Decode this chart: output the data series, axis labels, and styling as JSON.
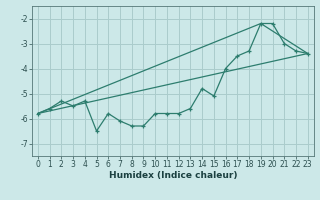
{
  "xlabel": "Humidex (Indice chaleur)",
  "bg_color": "#cce8e8",
  "grid_color": "#aacccc",
  "line_color": "#2d7d6e",
  "xlim": [
    -0.5,
    23.5
  ],
  "ylim": [
    -7.5,
    -1.5
  ],
  "yticks": [
    -7,
    -6,
    -5,
    -4,
    -3,
    -2
  ],
  "xticks": [
    0,
    1,
    2,
    3,
    4,
    5,
    6,
    7,
    8,
    9,
    10,
    11,
    12,
    13,
    14,
    15,
    16,
    17,
    18,
    19,
    20,
    21,
    22,
    23
  ],
  "line1_x": [
    0,
    1,
    2,
    3,
    4,
    5,
    6,
    7,
    8,
    9,
    10,
    11,
    12,
    13,
    14,
    15,
    16,
    17,
    18,
    19,
    20,
    21,
    22,
    23
  ],
  "line1_y": [
    -5.8,
    -5.6,
    -5.3,
    -5.5,
    -5.3,
    -6.5,
    -5.8,
    -6.1,
    -6.3,
    -6.3,
    -5.8,
    -5.8,
    -5.8,
    -5.6,
    -4.8,
    -5.1,
    -4.0,
    -3.5,
    -3.3,
    -2.2,
    -2.2,
    -3.0,
    -3.3,
    -3.4
  ],
  "line2_x": [
    0,
    19,
    23
  ],
  "line2_y": [
    -5.8,
    -2.2,
    -3.4
  ],
  "line3_x": [
    0,
    23
  ],
  "line3_y": [
    -5.8,
    -3.4
  ],
  "tick_fontsize": 5.5,
  "xlabel_fontsize": 6.5
}
